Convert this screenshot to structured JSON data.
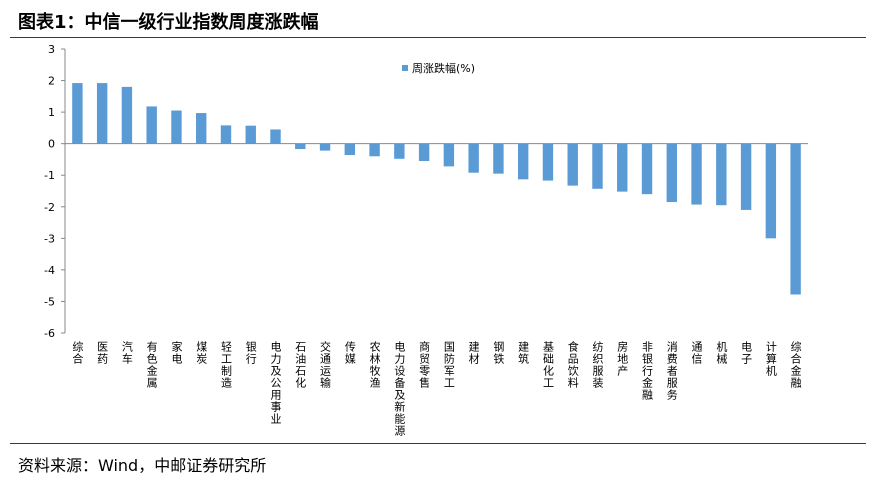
{
  "header": {
    "title": "图表1：中信一级行业指数周度涨跌幅"
  },
  "chart_data": {
    "type": "bar",
    "categories": [
      "综合",
      "医药",
      "汽车",
      "有色金属",
      "家电",
      "煤炭",
      "轻工制造",
      "银行",
      "电力及公用事业",
      "石油石化",
      "交通运输",
      "传媒",
      "农林牧渔",
      "电力设备及新能源",
      "商贸零售",
      "国防军工",
      "建材",
      "钢铁",
      "建筑",
      "基础化工",
      "食品饮料",
      "纺织服装",
      "房地产",
      "非银行金融",
      "消费者服务",
      "通信",
      "机械",
      "电子",
      "计算机",
      "综合金融"
    ],
    "series": [
      {
        "name": "周涨跌幅(%)",
        "color": "#5b9bd5",
        "values": [
          1.92,
          1.92,
          1.8,
          1.18,
          1.05,
          0.97,
          0.58,
          0.57,
          0.45,
          -0.17,
          -0.22,
          -0.36,
          -0.4,
          -0.48,
          -0.55,
          -0.72,
          -0.92,
          -0.95,
          -1.13,
          -1.17,
          -1.33,
          -1.43,
          -1.52,
          -1.6,
          -1.85,
          -1.93,
          -1.95,
          -2.1,
          -3.0,
          -4.78
        ]
      }
    ],
    "ylim": [
      -6,
      3
    ],
    "yticks": [
      -6,
      -5,
      -4,
      -3,
      -2,
      -1,
      0,
      1,
      2,
      3
    ],
    "legend": "top"
  },
  "footer": {
    "source": "资料来源：Wind，中邮证券研究所"
  }
}
